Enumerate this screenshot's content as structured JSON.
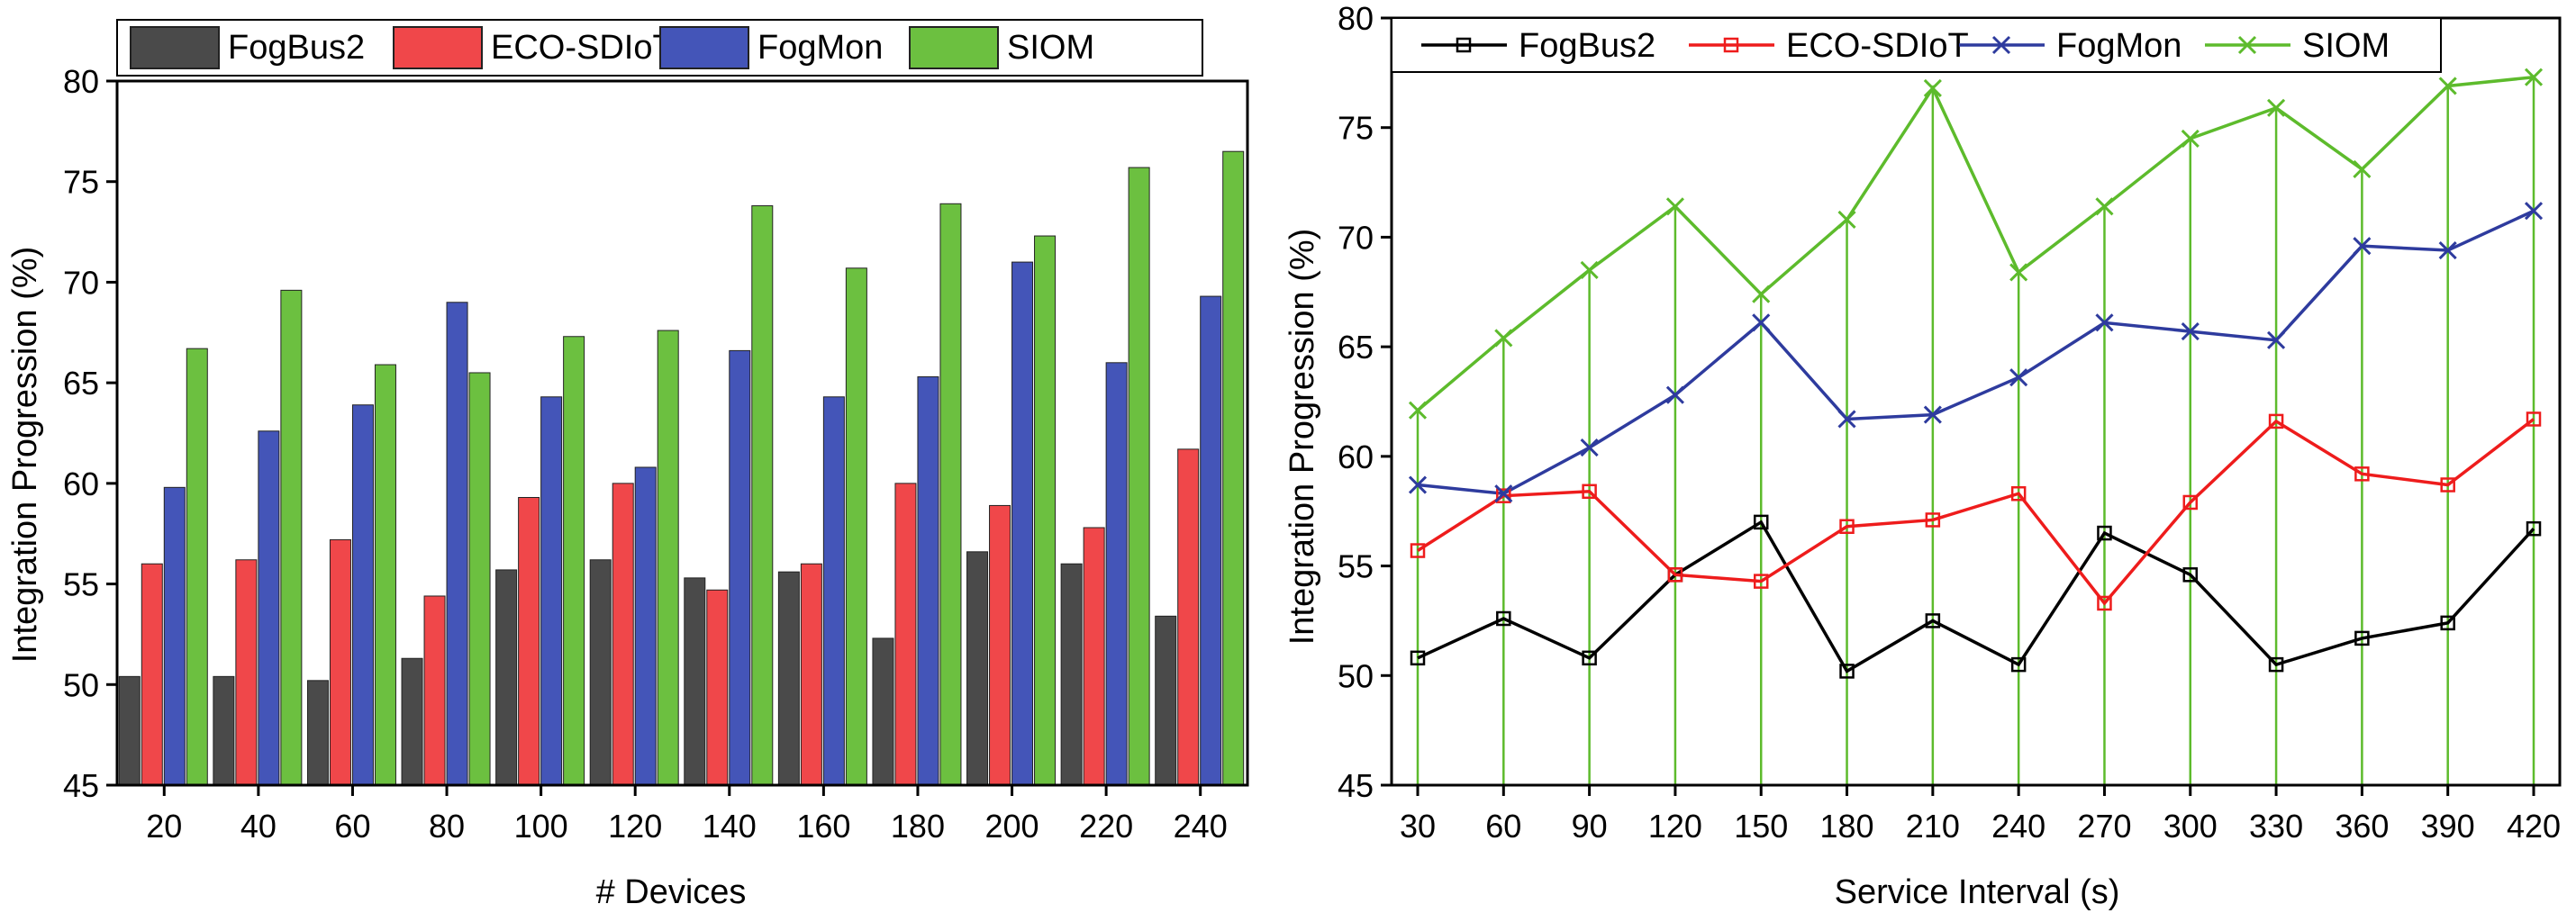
{
  "colors": {
    "FogBus2": "#4a4a4a",
    "ECO-SDIoT": "#f0474a",
    "FogMon": "#4455b8",
    "SIOM": "#6cc040",
    "FogBus2_line": "#000000",
    "ECO-SDIoT_line": "#ee1c1c",
    "FogMon_line": "#2e3b9e",
    "SIOM_line": "#5dbb2c"
  },
  "chart_data": [
    {
      "type": "bar",
      "xlabel": "# Devices",
      "ylabel": "Integration Progression (%)",
      "ylim": [
        45,
        80
      ],
      "yticks": [
        45,
        50,
        55,
        60,
        65,
        70,
        75,
        80
      ],
      "categories": [
        "20",
        "40",
        "60",
        "80",
        "100",
        "120",
        "140",
        "160",
        "180",
        "200",
        "220",
        "240"
      ],
      "legend_position": "top",
      "series": [
        {
          "name": "FogBus2",
          "values": [
            50.4,
            50.4,
            50.2,
            51.3,
            55.7,
            56.2,
            55.3,
            55.6,
            52.3,
            56.6,
            56.0,
            53.4
          ]
        },
        {
          "name": "ECO-SDIoT",
          "values": [
            56.0,
            56.2,
            57.2,
            54.4,
            59.3,
            60.0,
            54.7,
            56.0,
            60.0,
            58.9,
            57.8,
            61.7
          ]
        },
        {
          "name": "FogMon",
          "values": [
            59.8,
            62.6,
            63.9,
            69.0,
            64.3,
            60.8,
            66.6,
            64.3,
            65.3,
            71.0,
            66.0,
            69.3
          ]
        },
        {
          "name": "SIOM",
          "values": [
            66.7,
            69.6,
            65.9,
            65.5,
            67.3,
            67.6,
            73.8,
            70.7,
            73.9,
            72.3,
            75.7,
            76.5
          ]
        }
      ]
    },
    {
      "type": "line",
      "xlabel": "Service Interval (s)",
      "ylabel": "Integration Progression (%)",
      "ylim": [
        45,
        80
      ],
      "yticks": [
        45,
        50,
        55,
        60,
        65,
        70,
        75,
        80
      ],
      "x": [
        30,
        60,
        90,
        120,
        150,
        180,
        210,
        240,
        270,
        300,
        330,
        360,
        390,
        420
      ],
      "legend_position": "top",
      "series": [
        {
          "name": "FogBus2",
          "values": [
            50.8,
            52.6,
            50.8,
            54.6,
            57.0,
            50.2,
            52.5,
            50.5,
            56.5,
            54.6,
            50.5,
            51.7,
            52.4,
            56.7
          ]
        },
        {
          "name": "ECO-SDIoT",
          "values": [
            55.7,
            58.2,
            58.4,
            54.6,
            54.3,
            56.8,
            57.1,
            58.3,
            53.3,
            57.9,
            61.6,
            59.2,
            58.7,
            61.7
          ]
        },
        {
          "name": "FogMon",
          "values": [
            58.7,
            58.3,
            60.4,
            62.8,
            66.1,
            61.7,
            61.9,
            63.6,
            66.1,
            65.7,
            65.3,
            69.6,
            69.4,
            71.2
          ]
        },
        {
          "name": "SIOM",
          "values": [
            62.1,
            65.4,
            68.5,
            71.4,
            67.4,
            70.8,
            76.8,
            68.4,
            71.4,
            74.5,
            75.9,
            73.1,
            76.9,
            77.3
          ]
        }
      ]
    }
  ]
}
